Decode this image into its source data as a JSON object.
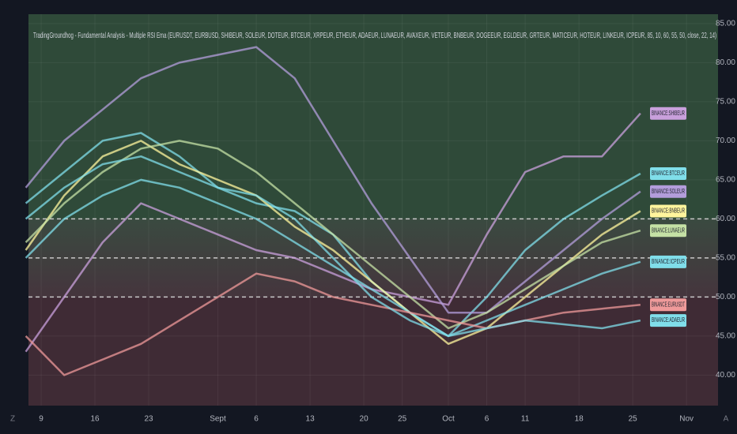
{
  "chart_data": {
    "type": "line",
    "title": "TradingGroundhog - Fundamental Analysis - Multiple RSI Ema (EURUSDT, EURBUSD, SHIBEUR, SOLEUR, DOTEUR, BTCEUR, XRPEUR, ETHEUR, ADAEUR, LUNAEUR, AVAXEUR, VETEUR, BNBEUR, DOGEEUR, EGLDEUR, GRTEUR, MATICEUR, HOTEUR, LINKEUR, ICPEUR, 85, 10, 60, 55, 50, close, 22, 14)",
    "x": [
      7,
      12,
      17,
      22,
      27,
      32,
      37,
      42,
      47,
      52,
      57,
      62,
      67,
      72,
      77,
      82,
      87
    ],
    "xlim": [
      7.35,
      97.1
    ],
    "xticks": [
      {
        "value": 9,
        "label": "9"
      },
      {
        "value": 16,
        "label": "16"
      },
      {
        "value": 23,
        "label": "23"
      },
      {
        "value": 32,
        "label": "Sept"
      },
      {
        "value": 37,
        "label": "6"
      },
      {
        "value": 44,
        "label": "13"
      },
      {
        "value": 51,
        "label": "20"
      },
      {
        "value": 56,
        "label": "25"
      },
      {
        "value": 62,
        "label": "Oct"
      },
      {
        "value": 67,
        "label": "6"
      },
      {
        "value": 72,
        "label": "11"
      },
      {
        "value": 79,
        "label": "18"
      },
      {
        "value": 86,
        "label": "25"
      },
      {
        "value": 93,
        "label": "Nov"
      }
    ],
    "ylim": [
      36.1,
      86.2
    ],
    "yticks": [
      {
        "value": 85,
        "label": "85.00"
      },
      {
        "value": 80,
        "label": "80.00"
      },
      {
        "value": 75,
        "label": "75.00"
      },
      {
        "value": 70,
        "label": "70.00"
      },
      {
        "value": 65,
        "label": "65.00"
      },
      {
        "value": 60,
        "label": "60.00"
      },
      {
        "value": 55,
        "label": "55.00"
      },
      {
        "value": 50,
        "label": "50.00"
      },
      {
        "value": 45,
        "label": "45.00"
      },
      {
        "value": 40,
        "label": "40.00"
      }
    ],
    "hlines": [
      60,
      55,
      50
    ],
    "series": [
      {
        "name": "BINANCE:SHIBEUR",
        "color": "#c9a0dc",
        "values": [
          43,
          50,
          57,
          62,
          60,
          58,
          56,
          55,
          53,
          51,
          50,
          49,
          58,
          66,
          68,
          68,
          73.5
        ]
      },
      {
        "name": "BINANCE:BTCEUR",
        "color": "#80deea",
        "values": [
          62,
          66,
          70,
          71,
          68,
          64,
          62,
          61,
          58,
          52,
          48,
          45,
          50,
          56,
          60,
          63,
          65.8
        ]
      },
      {
        "name": "BINANCE:SOLEUR",
        "color": "#b39ddb",
        "values": [
          64,
          70,
          74,
          78,
          80,
          81,
          82,
          78,
          70,
          62,
          55,
          48,
          48,
          52,
          56,
          60,
          63.5
        ]
      },
      {
        "name": "BINANCE:BNBEUR",
        "color": "#fff59d",
        "values": [
          56,
          63,
          68,
          70,
          67,
          65,
          63,
          59,
          56,
          52,
          48,
          44,
          46,
          50,
          54,
          58,
          61
        ]
      },
      {
        "name": "BINANCE:LUNAEUR",
        "color": "#c5e1a5",
        "values": [
          57,
          62,
          66,
          69,
          70,
          69,
          66,
          62,
          58,
          54,
          50,
          46,
          48,
          51,
          54,
          57,
          58.5
        ]
      },
      {
        "name": "BINANCE:ICPEUR",
        "color": "#80deea",
        "values": [
          55,
          60,
          63,
          65,
          64,
          62,
          60,
          57,
          54,
          51,
          48,
          45,
          47,
          49,
          51,
          53,
          54.5
        ]
      },
      {
        "name": "BINANCE:EURUSDT",
        "color": "#ef9a9a",
        "values": [
          45,
          40,
          42,
          44,
          47,
          50,
          53,
          52,
          50,
          49,
          48,
          47,
          46,
          47,
          48,
          48.5,
          49
        ]
      },
      {
        "name": "BINANCE:ADAEUR",
        "color": "#80deea",
        "values": [
          60,
          64,
          67,
          68,
          66,
          64,
          63,
          60,
          55,
          50,
          47,
          45,
          46,
          47,
          46.5,
          46,
          47
        ]
      }
    ],
    "ui": {
      "left_button": "Z",
      "right_button": "A"
    }
  }
}
